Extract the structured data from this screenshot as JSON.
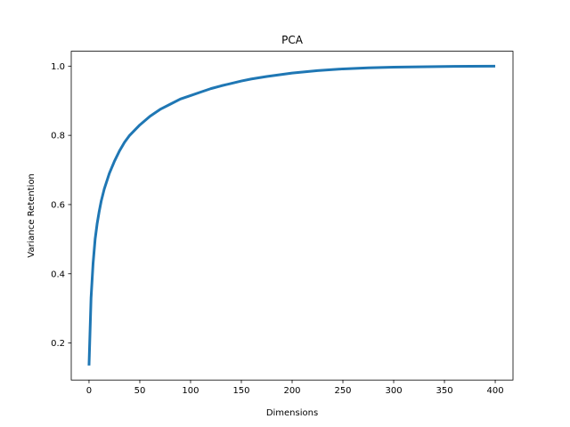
{
  "chart_data": {
    "type": "line",
    "title": "PCA",
    "xlabel": "Dimensions",
    "ylabel": "Variance Retention",
    "xlim": [
      -17.5,
      417.5
    ],
    "ylim": [
      0.093,
      1.043
    ],
    "xticks": [
      0,
      50,
      100,
      150,
      200,
      250,
      300,
      350,
      400
    ],
    "yticks": [
      0.2,
      0.4,
      0.6,
      0.8,
      1.0
    ],
    "xtick_labels": [
      "0",
      "50",
      "100",
      "150",
      "200",
      "250",
      "300",
      "350",
      "400"
    ],
    "ytick_labels": [
      "0.2",
      "0.4",
      "0.6",
      "0.8",
      "1.0"
    ],
    "grid": false,
    "series": [
      {
        "color": "#1f77b4",
        "x": [
          0,
          2,
          4,
          6,
          8,
          10,
          12,
          15,
          20,
          25,
          30,
          35,
          40,
          45,
          50,
          60,
          70,
          80,
          90,
          100,
          110,
          120,
          130,
          140,
          150,
          160,
          175,
          200,
          225,
          250,
          275,
          300,
          325,
          350,
          375,
          400
        ],
        "y": [
          0.135,
          0.33,
          0.43,
          0.5,
          0.545,
          0.58,
          0.61,
          0.645,
          0.69,
          0.725,
          0.755,
          0.78,
          0.8,
          0.815,
          0.83,
          0.855,
          0.875,
          0.89,
          0.905,
          0.915,
          0.925,
          0.935,
          0.943,
          0.95,
          0.957,
          0.963,
          0.97,
          0.98,
          0.987,
          0.992,
          0.995,
          0.997,
          0.998,
          0.999,
          0.9995,
          1.0
        ]
      }
    ]
  }
}
